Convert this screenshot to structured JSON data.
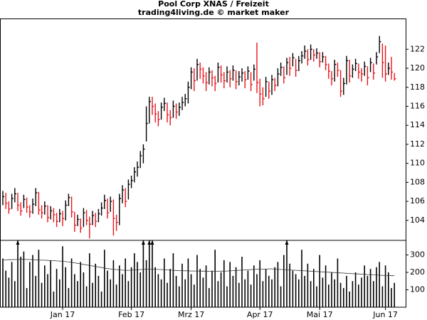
{
  "chart_data": {
    "type": "ohlc",
    "title": "Pool Corp XNAS / Freizeit",
    "subtitle": "trading4living.de © market maker",
    "categories": [
      null,
      null,
      null,
      null,
      null,
      null,
      null,
      null,
      null,
      null,
      null,
      null,
      null,
      null,
      null,
      null,
      null,
      null,
      null,
      null,
      "Jan 17",
      null,
      null,
      null,
      null,
      null,
      null,
      null,
      null,
      null,
      null,
      null,
      null,
      null,
      null,
      null,
      null,
      null,
      null,
      null,
      null,
      null,
      null,
      "Feb 17",
      null,
      null,
      null,
      null,
      null,
      null,
      null,
      null,
      null,
      null,
      null,
      null,
      null,
      null,
      null,
      null,
      null,
      null,
      null,
      "Mrz 17",
      null,
      null,
      null,
      null,
      null,
      null,
      null,
      null,
      null,
      null,
      null,
      null,
      null,
      null,
      null,
      null,
      null,
      null,
      null,
      null,
      null,
      null,
      "Apr 17",
      null,
      null,
      null,
      null,
      null,
      null,
      null,
      null,
      null,
      null,
      null,
      null,
      null,
      null,
      null,
      null,
      null,
      null,
      null,
      "Mai 17",
      null,
      null,
      null,
      null,
      null,
      null,
      null,
      null,
      null,
      null,
      null,
      null,
      null,
      null,
      null,
      null,
      null,
      null,
      null,
      null,
      null,
      "Jun 17",
      null,
      null,
      null
    ],
    "high": [
      107.1,
      106.9,
      106.0,
      106.8,
      107.4,
      106.9,
      105.9,
      106.7,
      106.4,
      105.6,
      106.3,
      107.4,
      107.0,
      105.6,
      106.0,
      105.6,
      105.5,
      105.3,
      104.8,
      105.2,
      105.0,
      106.1,
      106.8,
      106.5,
      104.9,
      104.6,
      104.2,
      105.3,
      105.1,
      104.4,
      105.0,
      104.8,
      105.2,
      105.9,
      106.7,
      106.3,
      106.5,
      106.2,
      104.6,
      106.8,
      107.7,
      107.4,
      108.3,
      108.7,
      109.6,
      110.2,
      111.3,
      112.0,
      116.0,
      117.0,
      117.0,
      116.3,
      115.5,
      116.4,
      116.9,
      116.4,
      115.6,
      116.6,
      116.3,
      116.4,
      117.0,
      117.3,
      118.6,
      120.1,
      120.0,
      121.0,
      120.6,
      120.1,
      119.6,
      120.1,
      119.8,
      119.2,
      120.6,
      120.3,
      119.6,
      120.2,
      119.8,
      120.3,
      119.8,
      119.7,
      120.0,
      119.7,
      120.2,
      119.6,
      120.4,
      122.7,
      118.9,
      118.0,
      119.1,
      118.6,
      119.3,
      119.0,
      120.0,
      120.6,
      120.2,
      121.1,
      121.2,
      121.6,
      121.0,
      121.3,
      121.8,
      122.4,
      122.0,
      122.5,
      122.0,
      122.1,
      121.7,
      121.7,
      121.3,
      120.5,
      119.7,
      120.9,
      120.6,
      119.8,
      119.0,
      121.3,
      120.9,
      120.4,
      121.0,
      120.5,
      120.0,
      120.7,
      120.2,
      121.1,
      120.5,
      121.7,
      123.4,
      122.6,
      122.4,
      120.6,
      121.2,
      119.5
    ],
    "low": [
      105.6,
      105.2,
      104.7,
      105.2,
      105.9,
      105.0,
      104.5,
      105.3,
      104.8,
      104.3,
      104.7,
      105.5,
      104.6,
      104.2,
      104.6,
      103.8,
      104.1,
      103.8,
      103.3,
      103.8,
      103.4,
      104.0,
      105.5,
      104.3,
      102.8,
      103.4,
      102.7,
      103.3,
      103.5,
      102.1,
      103.5,
      103.3,
      103.8,
      104.5,
      105.2,
      104.2,
      104.9,
      102.4,
      102.9,
      103.5,
      105.8,
      105.4,
      106.2,
      107.4,
      108.0,
      108.6,
      109.5,
      110.0,
      112.3,
      114.2,
      115.1,
      114.3,
      113.9,
      114.6,
      115.5,
      114.3,
      114.0,
      114.8,
      114.7,
      115.0,
      115.6,
      116.0,
      116.3,
      117.8,
      117.6,
      118.7,
      118.9,
      118.4,
      117.6,
      118.3,
      118.1,
      117.6,
      118.5,
      118.5,
      117.9,
      118.5,
      118.0,
      118.7,
      117.8,
      118.2,
      118.6,
      117.9,
      118.8,
      117.6,
      118.7,
      117.4,
      116.0,
      116.1,
      117.0,
      116.8,
      117.2,
      117.6,
      118.1,
      119.2,
      118.4,
      119.3,
      119.2,
      120.2,
      119.1,
      119.7,
      120.5,
      121.0,
      120.3,
      120.9,
      120.7,
      121.0,
      120.1,
      120.6,
      119.8,
      118.9,
      118.2,
      118.6,
      119.1,
      117.0,
      117.2,
      118.3,
      118.5,
      119.0,
      119.7,
      118.9,
      118.6,
      119.2,
      118.2,
      119.6,
      118.8,
      120.4,
      121.6,
      119.0,
      118.6,
      119.3,
      118.8,
      118.7
    ],
    "close": [
      106.5,
      105.8,
      105.2,
      106.3,
      106.8,
      105.6,
      105.0,
      106.2,
      105.4,
      104.9,
      105.7,
      106.9,
      105.1,
      104.8,
      105.5,
      104.3,
      105.0,
      104.6,
      103.9,
      104.7,
      104.2,
      105.6,
      106.4,
      104.9,
      103.5,
      104.1,
      103.2,
      104.8,
      104.0,
      103.6,
      104.5,
      103.9,
      104.7,
      105.3,
      106.1,
      104.8,
      106.0,
      104.2,
      103.8,
      106.3,
      107.2,
      106.0,
      107.8,
      108.2,
      109.1,
      109.6,
      110.8,
      111.5,
      114.2,
      116.5,
      116.0,
      115.2,
      114.6,
      115.9,
      116.3,
      115.1,
      114.8,
      116.0,
      115.4,
      115.9,
      116.4,
      116.8,
      118.0,
      119.6,
      118.7,
      120.4,
      119.9,
      119.2,
      118.5,
      119.6,
      119.0,
      118.4,
      120.1,
      119.3,
      118.7,
      119.6,
      118.9,
      119.8,
      118.6,
      119.1,
      119.5,
      118.8,
      119.7,
      118.3,
      119.9,
      118.5,
      117.3,
      116.8,
      118.6,
      117.6,
      118.8,
      118.2,
      119.4,
      120.1,
      119.0,
      120.6,
      120.0,
      121.1,
      119.8,
      120.8,
      121.3,
      121.8,
      120.9,
      122.0,
      121.4,
      121.6,
      120.7,
      121.2,
      120.4,
      119.7,
      118.9,
      120.4,
      119.8,
      117.6,
      118.4,
      120.8,
      119.2,
      119.9,
      120.5,
      119.6,
      119.4,
      120.2,
      119.0,
      120.6,
      119.5,
      121.2,
      122.8,
      120.6,
      119.4,
      120.0,
      119.6,
      118.9
    ],
    "up_color": "#000000",
    "down_color": "#e8141b",
    "ylim": [
      101.9,
      125.2
    ],
    "yticks": [
      104,
      106,
      108,
      110,
      112,
      114,
      116,
      118,
      120,
      122
    ],
    "volume": {
      "values": [
        280,
        210,
        170,
        260,
        150,
        420,
        290,
        320,
        110,
        260,
        300,
        180,
        330,
        140,
        240,
        190,
        270,
        90,
        220,
        160,
        350,
        230,
        110,
        280,
        190,
        150,
        260,
        200,
        120,
        310,
        140,
        250,
        180,
        90,
        330,
        210,
        160,
        270,
        130,
        240,
        190,
        280,
        150,
        230,
        310,
        260,
        200,
        520,
        270,
        450,
        480,
        230,
        190,
        160,
        280,
        140,
        220,
        310,
        180,
        120,
        250,
        160,
        280,
        190,
        130,
        300,
        220,
        170,
        240,
        110,
        210,
        330,
        150,
        200,
        270,
        120,
        260,
        180,
        230,
        140,
        290,
        160,
        210,
        130,
        240,
        190,
        270,
        150,
        220,
        180,
        160,
        230,
        260,
        120,
        300,
        460,
        250,
        210,
        190,
        160,
        330,
        180,
        250,
        150,
        220,
        120,
        300,
        170,
        240,
        130,
        200,
        160,
        280,
        140,
        110,
        180,
        90,
        150,
        200,
        130,
        170,
        240,
        180,
        220,
        150,
        230,
        260,
        120,
        240,
        200,
        110,
        140
      ],
      "average": [
        272,
        272,
        273,
        273,
        274,
        274,
        275,
        275,
        274,
        274,
        273,
        272,
        271,
        270,
        270,
        269,
        268,
        267,
        266,
        265,
        264,
        262,
        260,
        258,
        255,
        252,
        249,
        246,
        243,
        240,
        237,
        234,
        231,
        228,
        225,
        222,
        220,
        218,
        216,
        214,
        213,
        212,
        212,
        213,
        214,
        215,
        216,
        217,
        218,
        219,
        219,
        218,
        217,
        216,
        215,
        214,
        213,
        212,
        211,
        210,
        210,
        209,
        209,
        208,
        208,
        208,
        207,
        207,
        207,
        206,
        206,
        206,
        206,
        207,
        207,
        208,
        209,
        210,
        211,
        212,
        213,
        214,
        215,
        216,
        217,
        218,
        218,
        219,
        219,
        220,
        220,
        219,
        218,
        217,
        216,
        215,
        214,
        213,
        212,
        211,
        210,
        209,
        208,
        207,
        206,
        205,
        204,
        203,
        202,
        201,
        200,
        199,
        198,
        197,
        196,
        195,
        194,
        193,
        192,
        191,
        190,
        189,
        188,
        187,
        186,
        185,
        184,
        183,
        182,
        182,
        181,
        181
      ],
      "color": "#000000",
      "ylim": [
        0,
        384
      ],
      "yticks": [
        100,
        200,
        300
      ]
    }
  }
}
